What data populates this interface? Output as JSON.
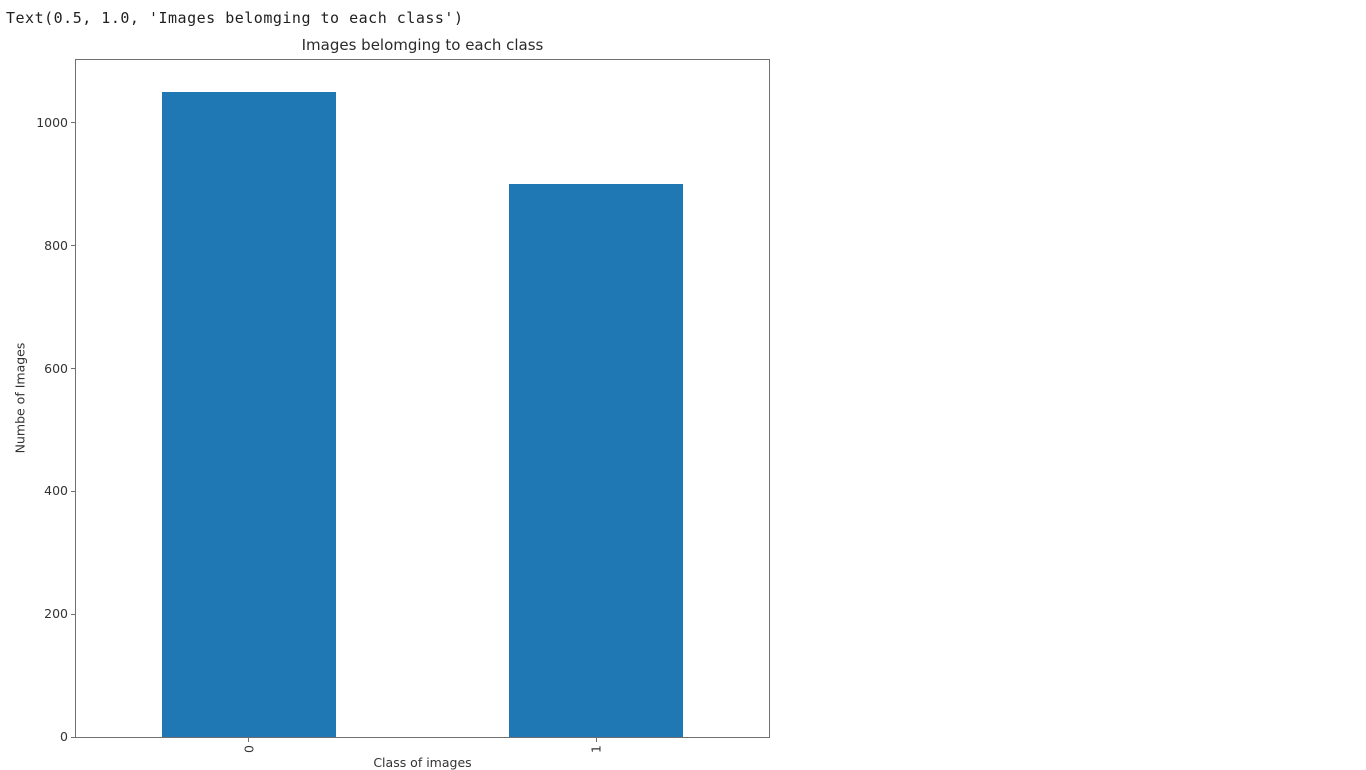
{
  "notebook": {
    "output_text": "Text(0.5, 1.0, 'Images belomging to each class')"
  },
  "chart_data": {
    "type": "bar",
    "title": "Images belomging to each class",
    "xlabel": "Class of images",
    "ylabel": "Numbe of Images",
    "categories": [
      "0",
      "1"
    ],
    "values": [
      1050,
      900
    ],
    "ylim": [
      0,
      1102.5
    ],
    "yticks": [
      0,
      200,
      400,
      600,
      800,
      1000
    ],
    "xtick_rotation": 90,
    "bar_width_fraction": 0.5,
    "bar_color": "#1f77b4",
    "spine_color": "#707070",
    "text_color": "#333333",
    "grid": false,
    "legend": false
  }
}
